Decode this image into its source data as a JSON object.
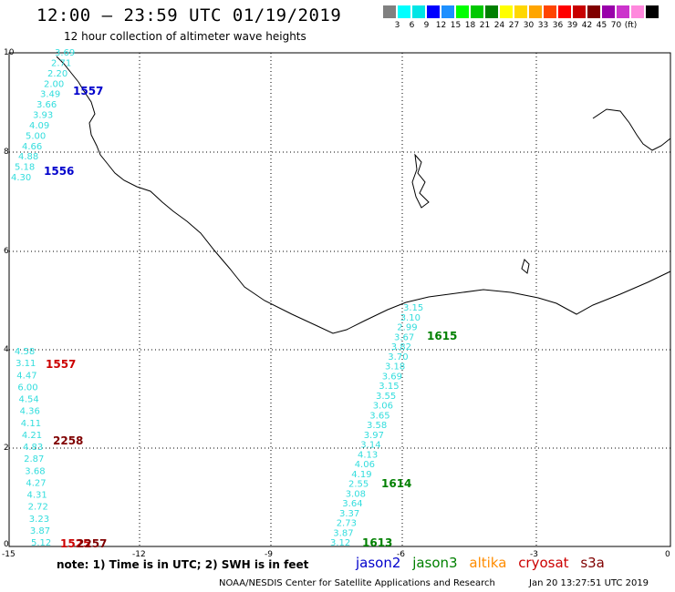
{
  "title": "12:00 – 23:59 UTC 01/19/2019",
  "subtitle": "12 hour collection of altimeter wave heights",
  "scale": {
    "colors": [
      "#808080",
      "#00ffff",
      "#00e5e5",
      "#0000ff",
      "#1e90ff",
      "#00ff00",
      "#00c800",
      "#008000",
      "#ffff00",
      "#ffd700",
      "#ffa500",
      "#ff4500",
      "#ff0000",
      "#c80000",
      "#800000",
      "#9900aa",
      "#cc33cc",
      "#ff88dd",
      "#000000"
    ],
    "labels": [
      "3",
      "6",
      "9",
      "12",
      "15",
      "18",
      "21",
      "24",
      "27",
      "30",
      "33",
      "36",
      "39",
      "42",
      "45",
      "70",
      "(ft)"
    ]
  },
  "axes": {
    "y_ticks": [
      "10",
      "8",
      "6",
      "4",
      "2",
      "0"
    ],
    "x_ticks": [
      "-15",
      "-12",
      "-9",
      "-6",
      "-3",
      "0"
    ]
  },
  "tracks": {
    "jason2_left": [
      "3.69",
      "2.71",
      "2.20",
      "2.00",
      "3.49",
      "3.66",
      "3.93",
      "4.09",
      "5.00",
      "4.66",
      "4.88",
      "5.18",
      "4.30"
    ],
    "cryosat_left": [
      "4.58",
      "3.11",
      "4.47",
      "6.00",
      "4.54",
      "4.36",
      "4.11",
      "4.21",
      "4.83",
      "2.87",
      "3.68",
      "4.27",
      "4.31",
      "2.72",
      "3.23",
      "3.87",
      "5.12"
    ],
    "jason3_center": [
      "3.15",
      "3.10",
      "2.99",
      "3.67",
      "3.82",
      "3.70",
      "3.18",
      "3.69",
      "3.15",
      "3.55",
      "3.06",
      "3.65",
      "3.58",
      "3.97",
      "3.14",
      "4.13",
      "4.06",
      "4.19",
      "2.55",
      "3.08",
      "3.64",
      "3.37",
      "2.73",
      "3.87",
      "3.12"
    ]
  },
  "pass_ids": {
    "jason2_a": "1557",
    "jason2_b": "1556",
    "cryosat_a": "1557",
    "cryosat_b": "2258",
    "cryosat_c": "1525",
    "cryosat_d": "2257",
    "jason3_a": "1615",
    "jason3_b": "1614",
    "jason3_c": "1613"
  },
  "colors": {
    "jason2": "#0000cc",
    "jason3": "#008000",
    "altika": "#ff8c00",
    "cryosat": "#cc0000",
    "s3a": "#800000",
    "track": "#33dddd"
  },
  "note": "note:  1) Time is in UTC;  2) SWH is in feet",
  "satellites": [
    "jason2",
    "jason3",
    "altika",
    "cryosat",
    "s3a"
  ],
  "credit": "NOAA/NESDIS Center for Satellite Applications and Research",
  "timestamp": "Jan 20 13:27:51 UTC 2019"
}
